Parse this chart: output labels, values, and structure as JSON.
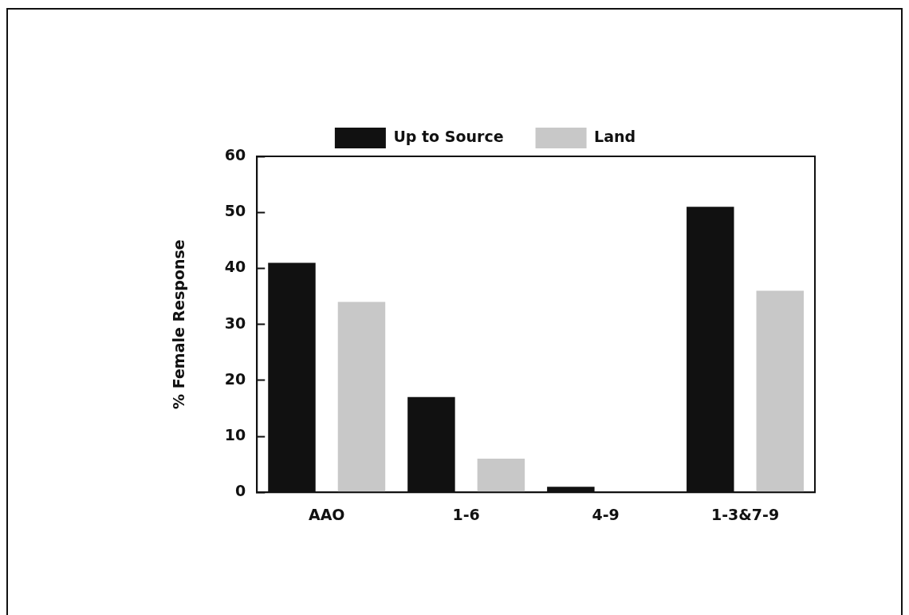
{
  "chart_data": {
    "type": "bar",
    "ylabel": "% Female Response",
    "categories": [
      "AAO",
      "1-6",
      "4-9",
      "1-3&7-9"
    ],
    "series": [
      {
        "name": "Up to Source",
        "color": "#111111",
        "values": [
          41,
          17,
          1,
          51
        ]
      },
      {
        "name": "Land",
        "color": "#c8c8c8",
        "values": [
          34,
          6,
          0,
          36
        ]
      }
    ],
    "ylim": [
      0,
      60
    ],
    "yticks": [
      0,
      10,
      20,
      30,
      40,
      50,
      60
    ],
    "grid": false,
    "legend": "top"
  }
}
